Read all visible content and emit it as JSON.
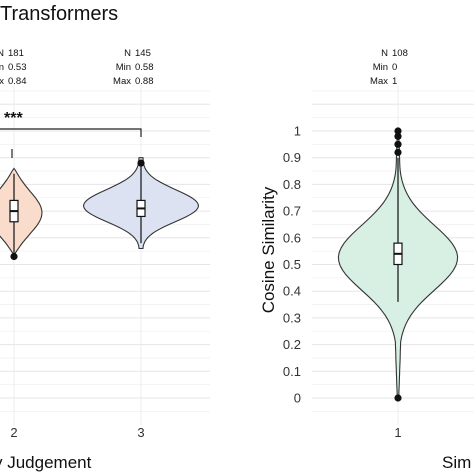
{
  "chart_data": [
    {
      "type": "violin",
      "title": "Transformers",
      "xlabel": "y Judgement",
      "ylabel": "",
      "categories": [
        "2",
        "3"
      ],
      "ylim": [
        0,
        1
      ],
      "grid": true,
      "groups": [
        {
          "category": "2",
          "stats": {
            "n_label": "N",
            "n": "181",
            "min_label": "Min",
            "min": "0.53",
            "max_label": "Max",
            "max": "0.84"
          },
          "median": 0.7,
          "q1": 0.66,
          "q3": 0.74,
          "whisker_low": 0.53,
          "whisker_high": 0.84,
          "outliers": [
            0.53
          ],
          "fill": "#f9dccb"
        },
        {
          "category": "3",
          "stats": {
            "n_label": "N",
            "n": "145",
            "min_label": "Min",
            "min": "0.58",
            "max_label": "Max",
            "max": "0.88"
          },
          "median": 0.71,
          "q1": 0.68,
          "q3": 0.74,
          "whisker_low": 0.58,
          "whisker_high": 0.88,
          "outliers": [
            0.88
          ],
          "fill": "#dde2f2"
        }
      ],
      "significance": {
        "label": "***",
        "from": "1",
        "to": "3"
      }
    },
    {
      "type": "violin",
      "title": "",
      "xlabel": "Sim",
      "ylabel": "Cosine Similarity",
      "categories": [
        "1"
      ],
      "ylim": [
        0,
        1
      ],
      "yticks": [
        "0",
        "0.1",
        "0.2",
        "0.3",
        "0.4",
        "0.5",
        "0.6",
        "0.7",
        "0.8",
        "0.9",
        "1"
      ],
      "grid": true,
      "groups": [
        {
          "category": "1",
          "stats": {
            "n_label": "N",
            "n": "108",
            "min_label": "Min",
            "min": "0",
            "max_label": "Max",
            "max": "1"
          },
          "median": 0.54,
          "q1": 0.5,
          "q3": 0.58,
          "whisker_low": 0.36,
          "whisker_high": 0.9,
          "outliers": [
            0,
            0.92,
            0.95,
            0.98,
            1.0
          ],
          "fill": "#d7f0e3"
        }
      ]
    }
  ]
}
